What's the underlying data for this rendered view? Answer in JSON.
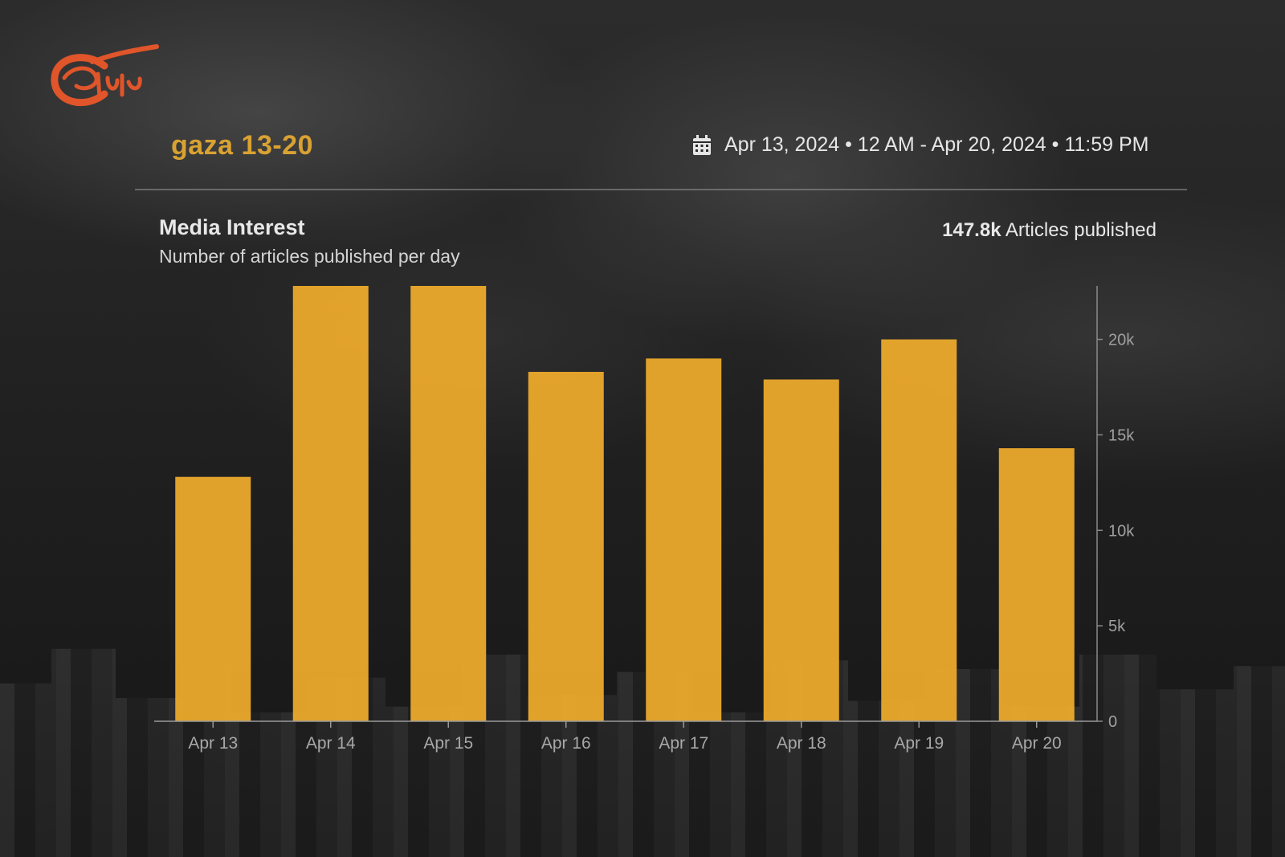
{
  "header": {
    "title": "gaza 13-20",
    "date_range": "Apr 13, 2024 • 12 AM - Apr 20, 2024 • 11:59 PM",
    "calendar_icon": "calendar-icon"
  },
  "chart_header": {
    "title": "Media Interest",
    "subtitle": "Number of articles published per day",
    "summary_value": "147.8k",
    "summary_label": "Articles published"
  },
  "colors": {
    "bar": "#f0ac2c",
    "title": "#d9a232",
    "logo": "#e0552a"
  },
  "chart_data": {
    "type": "bar",
    "title": "Media Interest",
    "subtitle": "Number of articles published per day",
    "categories": [
      "Apr 13",
      "Apr 14",
      "Apr 15",
      "Apr 16",
      "Apr 17",
      "Apr 18",
      "Apr 19",
      "Apr 20"
    ],
    "values": [
      12800,
      22800,
      22800,
      18300,
      19000,
      17900,
      20000,
      14300
    ],
    "ylim": [
      0,
      22800
    ],
    "yticks": [
      0,
      5000,
      10000,
      15000,
      20000
    ],
    "ytick_labels": [
      "0",
      "5k",
      "10k",
      "15k",
      "20k"
    ],
    "y_axis_side": "right",
    "grid": false,
    "legend": "none"
  }
}
